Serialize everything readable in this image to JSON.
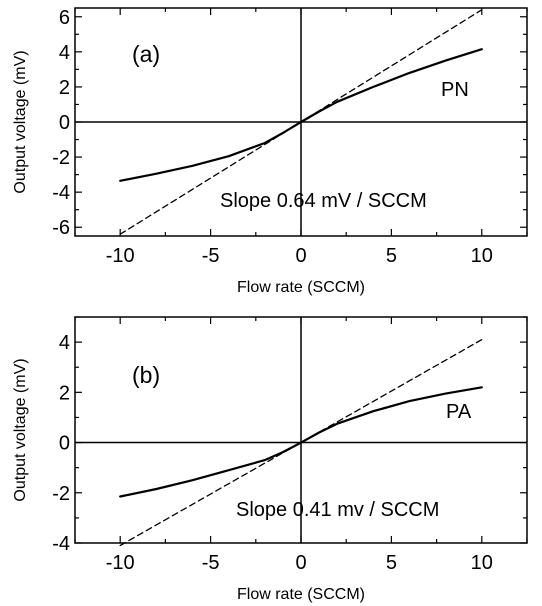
{
  "chart_data": [
    {
      "type": "line",
      "panel_label": "(a)",
      "xlabel": "Flow rate (SCCM)",
      "ylabel": "Output voltage (mV)",
      "xlim": [
        -12.5,
        12.5
      ],
      "ylim": [
        -6.5,
        6.5
      ],
      "xticks": [
        -10,
        -5,
        0,
        5,
        10
      ],
      "yticks": [
        -6,
        -4,
        -2,
        0,
        2,
        4,
        6
      ],
      "annotation": "Slope 0.64 mV / SCCM",
      "series": [
        {
          "name": "PN",
          "style": "solid",
          "x": [
            -10,
            -8,
            -6,
            -4,
            -2,
            -1,
            0,
            1,
            2,
            4,
            6,
            8,
            10
          ],
          "y": [
            -3.35,
            -2.95,
            -2.5,
            -1.95,
            -1.2,
            -0.62,
            0.0,
            0.6,
            1.15,
            2.0,
            2.8,
            3.5,
            4.15
          ]
        },
        {
          "name": "",
          "style": "dashed",
          "x": [
            -10,
            10
          ],
          "y": [
            -6.4,
            6.4
          ]
        }
      ]
    },
    {
      "type": "line",
      "panel_label": "(b)",
      "xlabel": "Flow rate (SCCM)",
      "ylabel": "Output voltage (mV)",
      "xlim": [
        -12.5,
        12.5
      ],
      "ylim": [
        -4,
        5
      ],
      "xticks": [
        -10,
        -5,
        0,
        5,
        10
      ],
      "yticks": [
        -4,
        -2,
        0,
        2,
        4
      ],
      "annotation": "Slope 0.41 mv / SCCM",
      "series": [
        {
          "name": "PA",
          "style": "solid",
          "x": [
            -10,
            -8,
            -6,
            -4,
            -2,
            -1,
            0,
            1,
            2,
            4,
            6,
            8,
            10
          ],
          "y": [
            -2.15,
            -1.85,
            -1.5,
            -1.1,
            -0.7,
            -0.38,
            0.0,
            0.4,
            0.75,
            1.25,
            1.65,
            1.95,
            2.2
          ]
        },
        {
          "name": "",
          "style": "dashed",
          "x": [
            -10,
            10
          ],
          "y": [
            -4.1,
            4.1
          ]
        }
      ]
    }
  ]
}
